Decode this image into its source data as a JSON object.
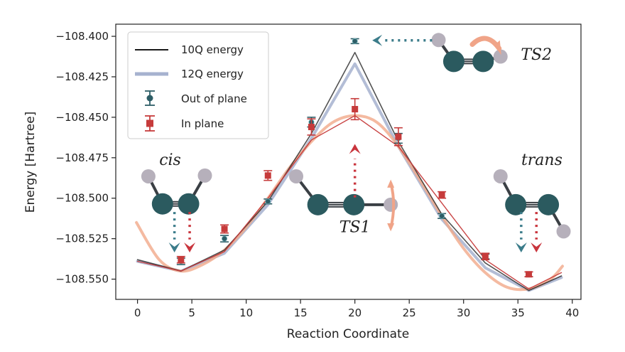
{
  "chart_data": {
    "type": "line",
    "title": "",
    "xlabel": "Reaction Coordinate",
    "ylabel": "Energy [Hartree]",
    "xlim": [
      -2,
      40.8
    ],
    "ylim": [
      -108.5625,
      -108.3925
    ],
    "xticks": [
      0,
      5,
      10,
      15,
      20,
      25,
      30,
      35,
      40
    ],
    "yticks": [
      -108.4,
      -108.425,
      -108.45,
      -108.475,
      -108.5,
      -108.525,
      -108.55
    ],
    "xtick_labels": [
      "0",
      "5",
      "10",
      "15",
      "20",
      "25",
      "30",
      "35",
      "40"
    ],
    "ytick_labels": [
      "−108.400",
      "−108.425",
      "−108.450",
      "−108.475",
      "−108.500",
      "−108.525",
      "−108.550"
    ],
    "grid": false,
    "legend_position": "top-left",
    "series": [
      {
        "name": "10Q energy",
        "kind": "line",
        "color": "#1a1a1a",
        "x": [
          0,
          4,
          8,
          12,
          16,
          20,
          24,
          28,
          32,
          36,
          39
        ],
        "y": [
          -108.538,
          -108.545,
          -108.532,
          -108.502,
          -108.46,
          -108.41,
          -108.465,
          -108.51,
          -108.54,
          -108.557,
          -108.548
        ]
      },
      {
        "name": "12Q energy",
        "kind": "line",
        "color": "#a6b2cf",
        "x": [
          0,
          4,
          8,
          12,
          16,
          20,
          24,
          28,
          32,
          36,
          39
        ],
        "y": [
          -108.539,
          -108.545,
          -108.534,
          -108.504,
          -108.463,
          -108.417,
          -108.468,
          -108.513,
          -108.543,
          -108.557,
          -108.549
        ]
      },
      {
        "name": "Out of plane",
        "kind": "errorbar",
        "color": "#2d5d66",
        "marker": "circle",
        "x": [
          4,
          8,
          12,
          16,
          20,
          24,
          28,
          32,
          36
        ],
        "y": [
          -108.539,
          -108.525,
          -108.502,
          -108.453,
          -108.403,
          -108.463,
          -108.511,
          -108.536,
          -108.547
        ],
        "err": [
          0.002,
          0.002,
          0.0015,
          0.003,
          0.0015,
          0.003,
          0.0015,
          0.0015,
          0.0015
        ]
      },
      {
        "name": "In plane",
        "kind": "errorbar",
        "color": "#c63b3b",
        "marker": "square",
        "x": [
          4,
          8,
          12,
          16,
          20,
          24,
          28,
          32,
          36
        ],
        "y": [
          -108.538,
          -108.519,
          -108.486,
          -108.456,
          -108.445,
          -108.462,
          -108.498,
          -108.536,
          -108.547
        ],
        "err": [
          0.002,
          0.0025,
          0.003,
          0.005,
          0.0065,
          0.0055,
          0.002,
          0.002,
          0.0015
        ]
      },
      {
        "name": "",
        "kind": "smooth",
        "color": "#f1a98a",
        "x": [
          -0.1,
          2,
          4,
          6,
          8,
          10,
          12,
          14,
          16,
          18,
          20,
          22,
          24,
          26,
          28,
          30,
          32,
          34,
          36,
          38,
          39.1
        ],
        "y": [
          -108.515,
          -108.538,
          -108.545,
          -108.541,
          -108.532,
          -108.518,
          -108.5,
          -108.481,
          -108.465,
          -108.453,
          -108.449,
          -108.453,
          -108.468,
          -108.489,
          -108.511,
          -108.531,
          -108.546,
          -108.555,
          -108.556,
          -108.55,
          -108.542
        ]
      },
      {
        "name": "",
        "kind": "line-thin",
        "color": "#c63b3b",
        "x": [
          0,
          4,
          8,
          12,
          16,
          20,
          24,
          28,
          32,
          36,
          39
        ],
        "y": [
          -108.539,
          -108.545,
          -108.533,
          -108.5,
          -108.464,
          -108.449,
          -108.468,
          -108.503,
          -108.538,
          -108.556,
          -108.546
        ]
      }
    ],
    "annotations": [
      {
        "text": "cis",
        "x": 3,
        "y": -108.4795
      },
      {
        "text": "trans",
        "x": 37.2,
        "y": -108.4795
      },
      {
        "text": "TS1",
        "x": 20,
        "y": -108.521
      },
      {
        "text": "TS2",
        "x": 36.7,
        "y": -108.4145
      }
    ],
    "molecules": [
      {
        "id": "cis",
        "atoms": [
          {
            "x": 1,
            "y": -108.4865,
            "kind": "H"
          },
          {
            "x": 2.3,
            "y": -108.5035,
            "kind": "C"
          },
          {
            "x": 4.7,
            "y": -108.5035,
            "kind": "C"
          },
          {
            "x": 6.2,
            "y": -108.486,
            "kind": "H"
          }
        ]
      },
      {
        "id": "ts1",
        "atoms": [
          {
            "x": 14.6,
            "y": -108.4865,
            "kind": "H"
          },
          {
            "x": 16.6,
            "y": -108.504,
            "kind": "C"
          },
          {
            "x": 19.9,
            "y": -108.504,
            "kind": "C"
          },
          {
            "x": 23.3,
            "y": -108.504,
            "kind": "H"
          }
        ]
      },
      {
        "id": "trans",
        "atoms": [
          {
            "x": 33.4,
            "y": -108.4865,
            "kind": "H"
          },
          {
            "x": 34.8,
            "y": -108.504,
            "kind": "C"
          },
          {
            "x": 37.8,
            "y": -108.504,
            "kind": "C"
          },
          {
            "x": 39.2,
            "y": -108.5205,
            "kind": "H"
          }
        ]
      },
      {
        "id": "ts2",
        "atoms": [
          {
            "x": 27.7,
            "y": -108.4023,
            "kind": "H"
          },
          {
            "x": 29.1,
            "y": -108.4155,
            "kind": "C"
          },
          {
            "x": 31.8,
            "y": -108.4155,
            "kind": "C"
          },
          {
            "x": 33.4,
            "y": -108.4125,
            "kind": "H"
          }
        ]
      }
    ],
    "colors": {
      "atom_c": "#2b5a5f",
      "atom_h": "#b6b0bb",
      "arrow_teal": "#3b7c8a",
      "arrow_red": "#c9353d",
      "arrow_peach": "#f0a488"
    }
  }
}
